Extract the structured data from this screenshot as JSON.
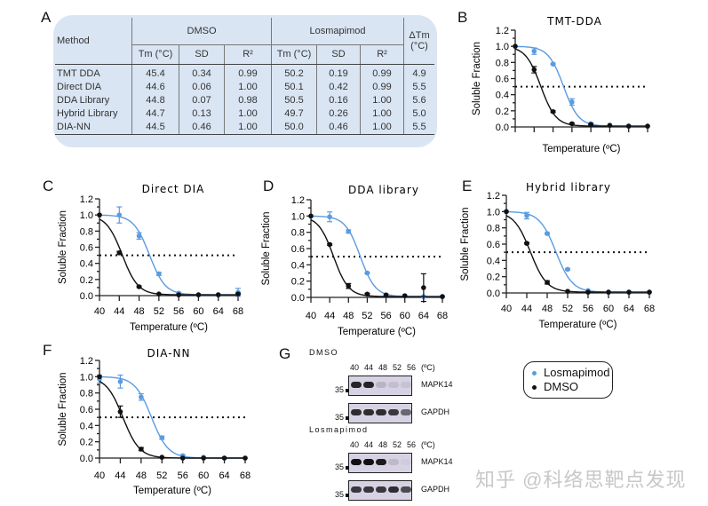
{
  "panel_labels": {
    "A": "A",
    "B": "B",
    "C": "C",
    "D": "D",
    "E": "E",
    "F": "F",
    "G": "G"
  },
  "colors": {
    "losmapimod": "#5b9be0",
    "dmso": "#111111",
    "table_bg": "#d9e5f3"
  },
  "table": {
    "method_header": "Method",
    "groups": [
      "DMSO",
      "Losmapimod"
    ],
    "delta_header": "ΔTm (°C)",
    "sub_headers": [
      "Tm (°C)",
      "SD",
      "R²",
      "Tm (°C)",
      "SD",
      "R²"
    ],
    "rows": [
      [
        "TMT DDA",
        "45.4",
        "0.34",
        "0.99",
        "50.2",
        "0.19",
        "0.99",
        "4.9"
      ],
      [
        "Direct DIA",
        "44.6",
        "0.06",
        "1.00",
        "50.1",
        "0.42",
        "0.99",
        "5.5"
      ],
      [
        "DDA Library",
        "44.8",
        "0.07",
        "0.98",
        "50.5",
        "0.16",
        "1.00",
        "5.6"
      ],
      [
        "Hybrid Library",
        "44.7",
        "0.13",
        "1.00",
        "49.7",
        "0.26",
        "1.00",
        "5.0"
      ],
      [
        "DIA-NN",
        "44.5",
        "0.46",
        "1.00",
        "50.0",
        "0.46",
        "1.00",
        "5.5"
      ]
    ]
  },
  "chart_data": [
    {
      "id": "B",
      "type": "line",
      "title": "TMT-DDA",
      "xlabel": "Temperature (ºC)",
      "ylabel": "Soluble Fraction",
      "x": [
        40,
        44,
        48,
        52,
        56,
        60,
        64,
        68
      ],
      "show_x_tick_labels": false,
      "xlim": [
        40,
        68
      ],
      "ylim": [
        0,
        1.2
      ],
      "yticks": [
        "0.0",
        "0.2",
        "0.4",
        "0.6",
        "0.8",
        "1.0",
        "1.2"
      ],
      "xticks": [
        "40",
        "44",
        "48",
        "52",
        "56",
        "60",
        "64",
        "68"
      ],
      "reference_line": 0.5,
      "series": [
        {
          "name": "DMSO",
          "tm": 45.4,
          "values": [
            1.0,
            0.71,
            0.19,
            0.04,
            0.03,
            0.02,
            0.01,
            0.01
          ],
          "err": [
            0,
            0.04,
            0.01,
            0.01,
            0.01,
            0,
            0,
            0
          ]
        },
        {
          "name": "Losmapimod",
          "tm": 50.2,
          "values": [
            1.0,
            0.94,
            0.78,
            0.31,
            0.04,
            0.02,
            0.01,
            0.01
          ],
          "err": [
            0,
            0.04,
            0.01,
            0.04,
            0.01,
            0,
            0,
            0
          ]
        }
      ]
    },
    {
      "id": "C",
      "type": "line",
      "title": "Direct DIA",
      "xlabel": "Temperature (ºC)",
      "ylabel": "Soluble Fraction",
      "x": [
        40,
        44,
        48,
        52,
        56,
        60,
        64,
        68
      ],
      "show_x_tick_labels": true,
      "xlim": [
        40,
        68
      ],
      "ylim": [
        0,
        1.2
      ],
      "yticks": [
        "0.0",
        "0.2",
        "0.4",
        "0.6",
        "0.8",
        "1.0",
        "1.2"
      ],
      "xticks": [
        "40",
        "44",
        "48",
        "52",
        "56",
        "60",
        "64",
        "68"
      ],
      "reference_line": 0.5,
      "series": [
        {
          "name": "DMSO",
          "tm": 44.6,
          "values": [
            1.0,
            0.53,
            0.11,
            0.02,
            0.01,
            0.01,
            0.01,
            0.02
          ],
          "err": [
            0,
            0.02,
            0.01,
            0,
            0,
            0,
            0,
            0.01
          ]
        },
        {
          "name": "Losmapimod",
          "tm": 50.1,
          "values": [
            1.0,
            1.0,
            0.74,
            0.27,
            0.03,
            0.01,
            0.01,
            0.04
          ],
          "err": [
            0,
            0.1,
            0.04,
            0.02,
            0.01,
            0,
            0,
            0.05
          ]
        }
      ]
    },
    {
      "id": "D",
      "type": "line",
      "title": "DDA library",
      "xlabel": "Temperature (ºC)",
      "ylabel": "Soluble Fraction",
      "x": [
        40,
        44,
        48,
        52,
        56,
        60,
        64,
        68
      ],
      "show_x_tick_labels": true,
      "xlim": [
        40,
        68
      ],
      "ylim": [
        0,
        1.2
      ],
      "yticks": [
        "0.0",
        "0.2",
        "0.4",
        "0.6",
        "0.8",
        "1.0",
        "1.2"
      ],
      "xticks": [
        "40",
        "44",
        "48",
        "52",
        "56",
        "60",
        "64",
        "68"
      ],
      "reference_line": 0.5,
      "series": [
        {
          "name": "DMSO",
          "tm": 44.8,
          "values": [
            1.0,
            0.65,
            0.14,
            0.04,
            0.03,
            0.02,
            0.12,
            0.01
          ],
          "err": [
            0,
            0.01,
            0.03,
            0.01,
            0,
            0,
            0.17,
            0
          ]
        },
        {
          "name": "Losmapimod",
          "tm": 50.5,
          "values": [
            1.0,
            0.99,
            0.81,
            0.3,
            0.03,
            0.02,
            0.01,
            0.01
          ],
          "err": [
            0,
            0.06,
            0.02,
            0.01,
            0.01,
            0,
            0,
            0
          ]
        }
      ]
    },
    {
      "id": "E",
      "type": "line",
      "title": "Hybrid library",
      "xlabel": "Temperature (ºC)",
      "ylabel": "Soluble Fraction",
      "x": [
        40,
        44,
        48,
        52,
        56,
        60,
        64,
        68
      ],
      "show_x_tick_labels": true,
      "xlim": [
        40,
        68
      ],
      "ylim": [
        0,
        1.2
      ],
      "yticks": [
        "0.0",
        "0.2",
        "0.4",
        "0.6",
        "0.8",
        "1.0",
        "1.2"
      ],
      "xticks": [
        "40",
        "44",
        "48",
        "52",
        "56",
        "60",
        "64",
        "68"
      ],
      "reference_line": 0.5,
      "series": [
        {
          "name": "DMSO",
          "tm": 44.7,
          "values": [
            1.0,
            0.61,
            0.13,
            0.02,
            0.01,
            0.01,
            0.01,
            0.01
          ],
          "err": [
            0,
            0.01,
            0.02,
            0,
            0,
            0,
            0,
            0
          ]
        },
        {
          "name": "Losmapimod",
          "tm": 49.7,
          "values": [
            1.0,
            0.95,
            0.73,
            0.29,
            0.03,
            0.01,
            0.01,
            0.01
          ],
          "err": [
            0,
            0.04,
            0.01,
            0.01,
            0,
            0,
            0,
            0
          ]
        }
      ]
    },
    {
      "id": "F",
      "type": "line",
      "title": "DIA-NN",
      "xlabel": "Temperature (ºC)",
      "ylabel": "Soluble Fraction",
      "x": [
        40,
        44,
        48,
        52,
        56,
        60,
        64,
        68
      ],
      "show_x_tick_labels": true,
      "xlim": [
        40,
        68
      ],
      "ylim": [
        0,
        1.2
      ],
      "yticks": [
        "0.0",
        "0.2",
        "0.4",
        "0.6",
        "0.8",
        "1.0",
        "1.2"
      ],
      "xticks": [
        "40",
        "44",
        "48",
        "52",
        "56",
        "60",
        "64",
        "68"
      ],
      "reference_line": 0.5,
      "series": [
        {
          "name": "DMSO",
          "tm": 44.5,
          "values": [
            1.0,
            0.57,
            0.11,
            0.01,
            0.0,
            0.0,
            0.0,
            0.0
          ],
          "err": [
            0,
            0.07,
            0.02,
            0,
            0,
            0,
            0,
            0
          ]
        },
        {
          "name": "Losmapimod",
          "tm": 50.0,
          "values": [
            0.97,
            0.94,
            0.75,
            0.25,
            0.03,
            0.01,
            0.0,
            0.0
          ],
          "err": [
            0.05,
            0.08,
            0.04,
            0.02,
            0.01,
            0,
            0,
            0
          ]
        }
      ]
    }
  ],
  "legend": {
    "items": [
      {
        "label": "Losmapimod",
        "color": "#5b9be0"
      },
      {
        "label": "DMSO",
        "color": "#111111"
      }
    ]
  },
  "blot": {
    "unit": "(ºC)",
    "marker": "35",
    "temps": [
      "40",
      "44",
      "48",
      "52",
      "56"
    ],
    "groups": [
      {
        "label": "DMSO",
        "rows": [
          {
            "protein": "MAPK14",
            "intensity": [
              0.9,
              0.9,
              0.15,
              0.1,
              0.08
            ]
          },
          {
            "protein": "GAPDH",
            "intensity": [
              0.85,
              0.85,
              0.85,
              0.8,
              0.55
            ]
          }
        ]
      },
      {
        "label": "Losmapimod",
        "rows": [
          {
            "protein": "MAPK14",
            "intensity": [
              1.0,
              1.0,
              0.95,
              0.12,
              0.03
            ]
          },
          {
            "protein": "GAPDH",
            "intensity": [
              0.8,
              0.8,
              0.8,
              0.85,
              0.7
            ]
          }
        ]
      }
    ]
  },
  "watermark": "知乎 @科络思靶点发现"
}
